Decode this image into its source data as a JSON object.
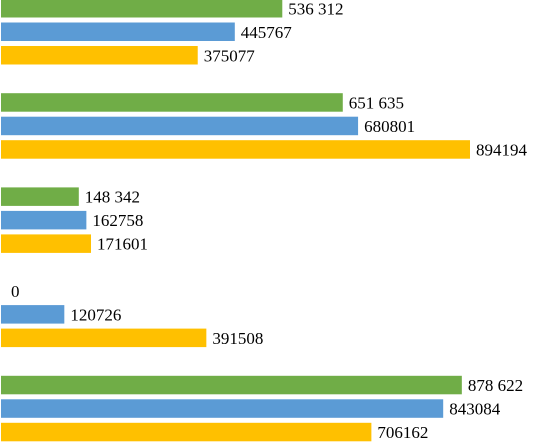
{
  "chart_data": {
    "type": "bar",
    "orientation": "horizontal",
    "xlim": [
      0,
      1000000
    ],
    "grid": false,
    "legend": "none",
    "groups": [
      {
        "bars": [
          {
            "value": 536312,
            "label": "536 312",
            "color": "#70ad47"
          },
          {
            "value": 445767,
            "label": "445767",
            "color": "#5b9bd5"
          },
          {
            "value": 375077,
            "label": "375077",
            "color": "#ffc000"
          }
        ]
      },
      {
        "bars": [
          {
            "value": 651635,
            "label": "651 635",
            "color": "#70ad47"
          },
          {
            "value": 680801,
            "label": "680801",
            "color": "#5b9bd5"
          },
          {
            "value": 894194,
            "label": "894194",
            "color": "#ffc000"
          }
        ]
      },
      {
        "bars": [
          {
            "value": 148342,
            "label": "148 342",
            "color": "#70ad47"
          },
          {
            "value": 162758,
            "label": "162758",
            "color": "#5b9bd5"
          },
          {
            "value": 171601,
            "label": "171601",
            "color": "#ffc000"
          }
        ]
      },
      {
        "bars": [
          {
            "value": 0,
            "label": "0",
            "color": "#70ad47"
          },
          {
            "value": 120726,
            "label": "120726",
            "color": "#5b9bd5"
          },
          {
            "value": 391508,
            "label": "391508",
            "color": "#ffc000"
          }
        ]
      },
      {
        "bars": [
          {
            "value": 878622,
            "label": "878 622",
            "color": "#70ad47"
          },
          {
            "value": 843084,
            "label": "843084",
            "color": "#5b9bd5"
          },
          {
            "value": 706162,
            "label": "706162",
            "color": "#ffc000"
          }
        ]
      }
    ]
  }
}
